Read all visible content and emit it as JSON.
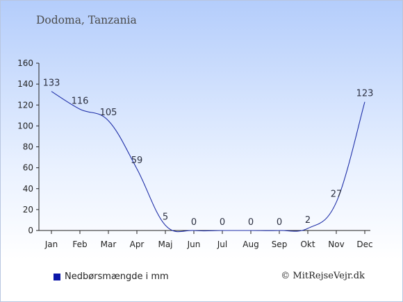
{
  "title": "Dodoma, Tanzania",
  "copyright": "© MitRejseVejr.dk",
  "colors": {
    "line": "#1f2fa8",
    "legend": "#0b16a8",
    "axis": "#222222"
  },
  "chart_data": {
    "type": "line",
    "title": "Dodoma, Tanzania",
    "xlabel": "",
    "ylabel": "",
    "categories": [
      "Jan",
      "Feb",
      "Mar",
      "Apr",
      "Maj",
      "Jun",
      "Jul",
      "Aug",
      "Sep",
      "Okt",
      "Nov",
      "Dec"
    ],
    "series": [
      {
        "name": "Nedbørsmængde i mm",
        "values": [
          133,
          116,
          105,
          59,
          5,
          0,
          0,
          0,
          0,
          2,
          27,
          123
        ]
      }
    ],
    "ylim": [
      0,
      160
    ],
    "yticks": [
      0,
      20,
      40,
      60,
      80,
      100,
      120,
      140,
      160
    ],
    "grid": false,
    "legend": "bottom-left"
  }
}
